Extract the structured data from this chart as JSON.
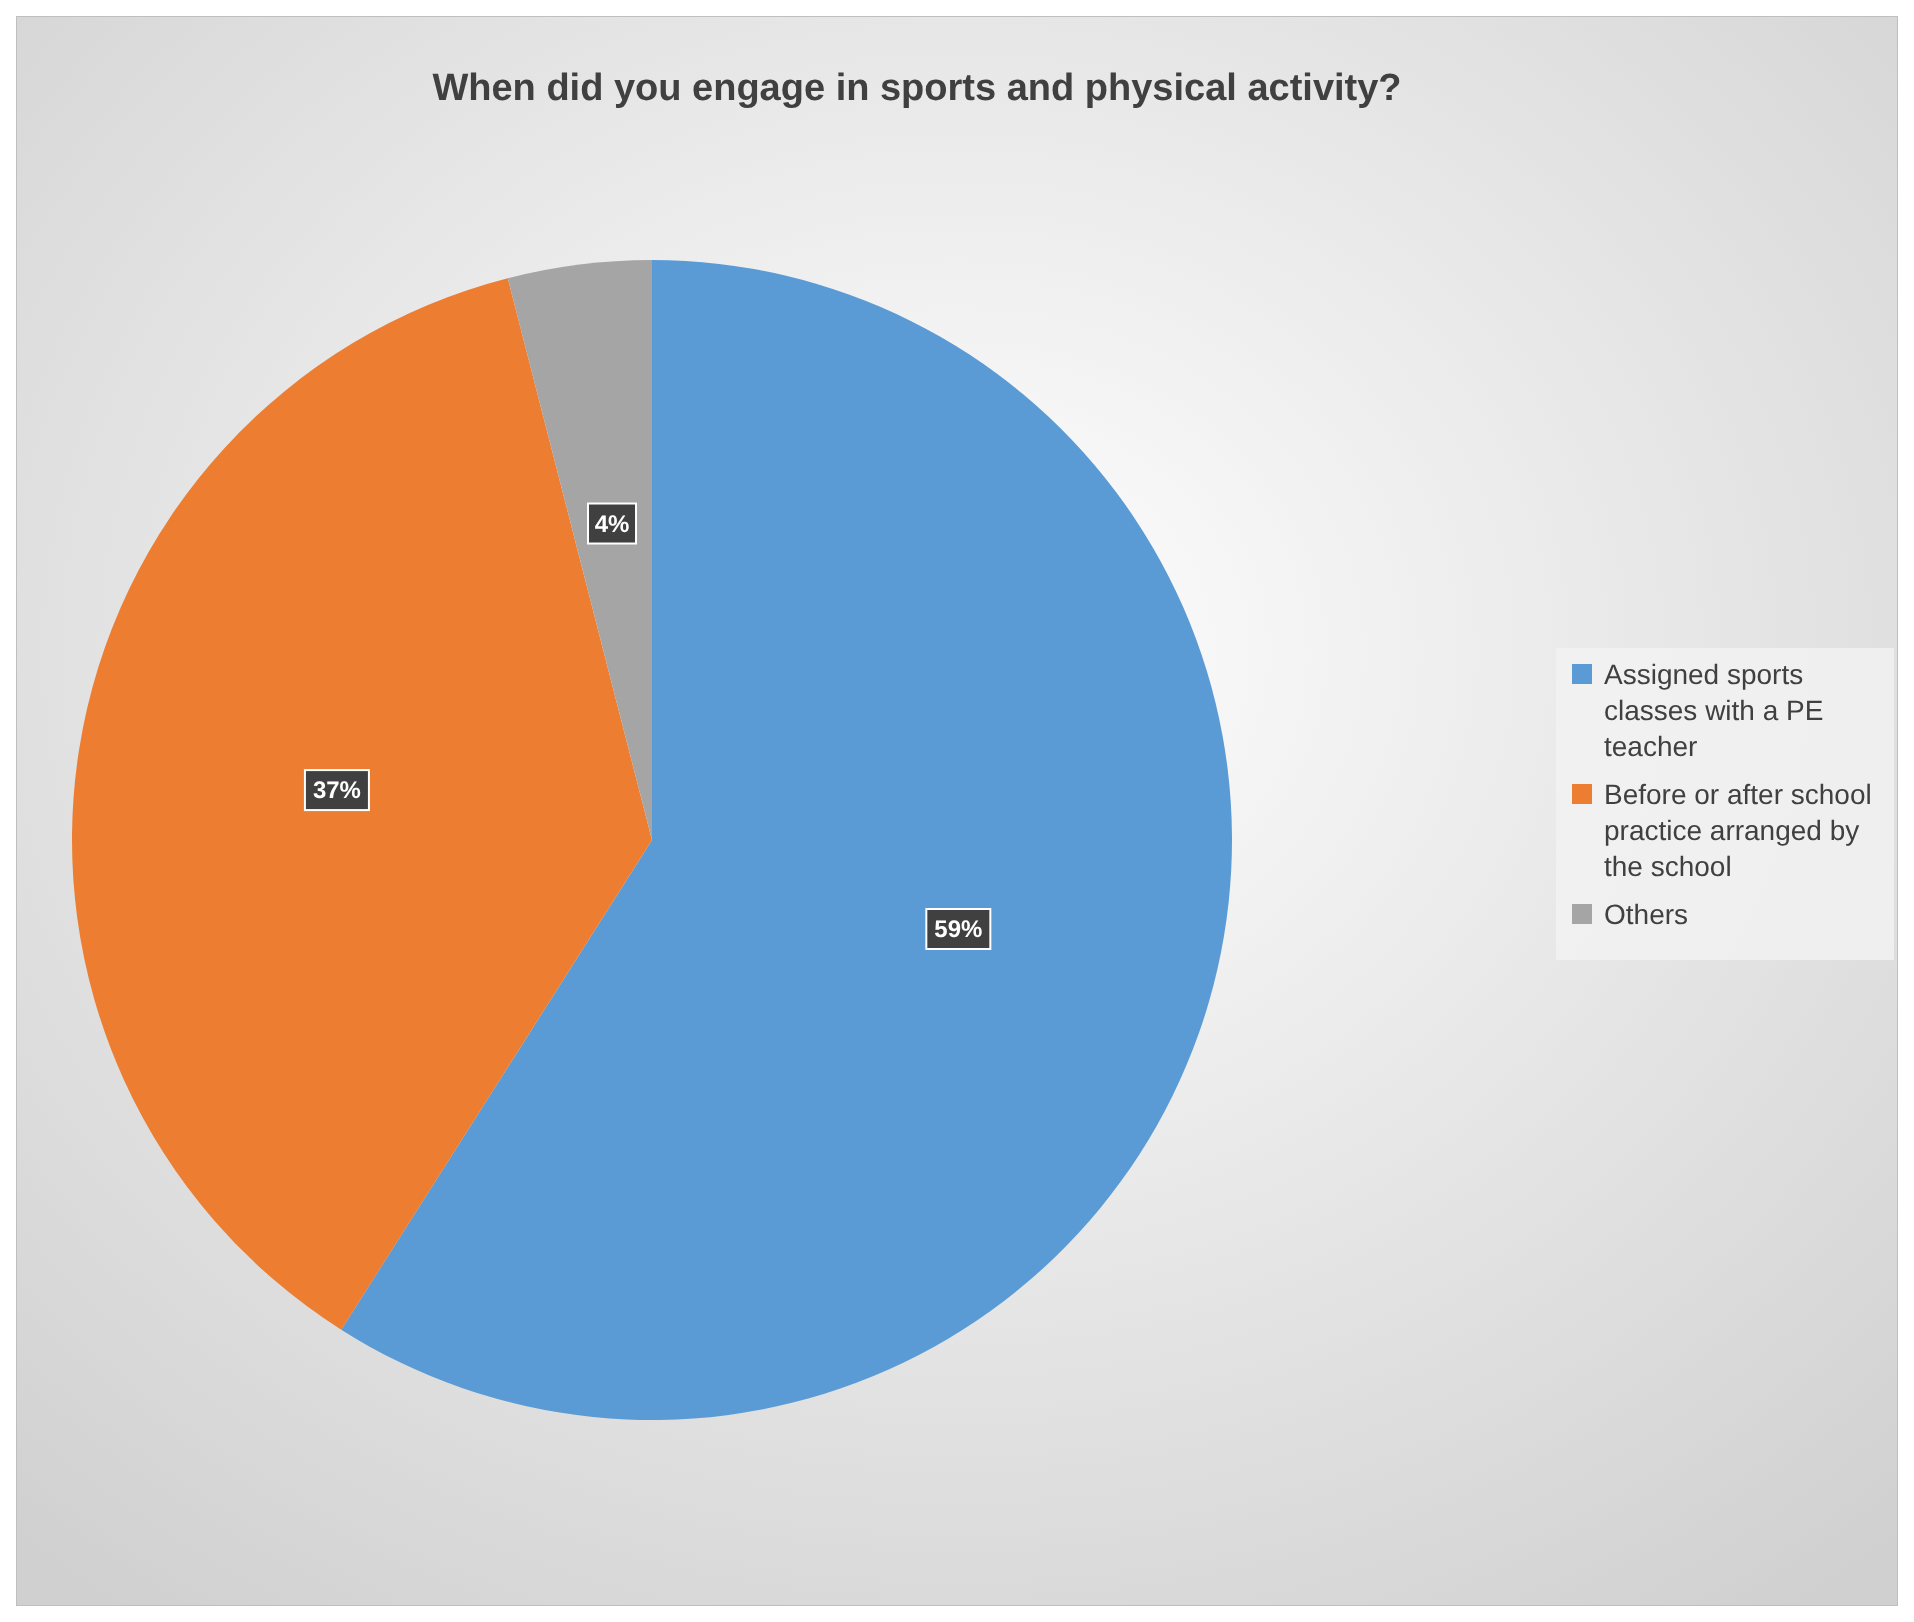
{
  "chart_data": {
    "type": "pie",
    "title": "When did you engage in sports and physical activity?",
    "categories": [
      "Assigned sports classes with a PE teacher",
      "Before or after school practice arranged by the school",
      "Others"
    ],
    "values": [
      59,
      37,
      4
    ],
    "value_labels": [
      "59%",
      "37%",
      "4%"
    ],
    "colors": [
      "#5b9bd5",
      "#ed7d31",
      "#a5a5a5"
    ],
    "legend": "right"
  }
}
